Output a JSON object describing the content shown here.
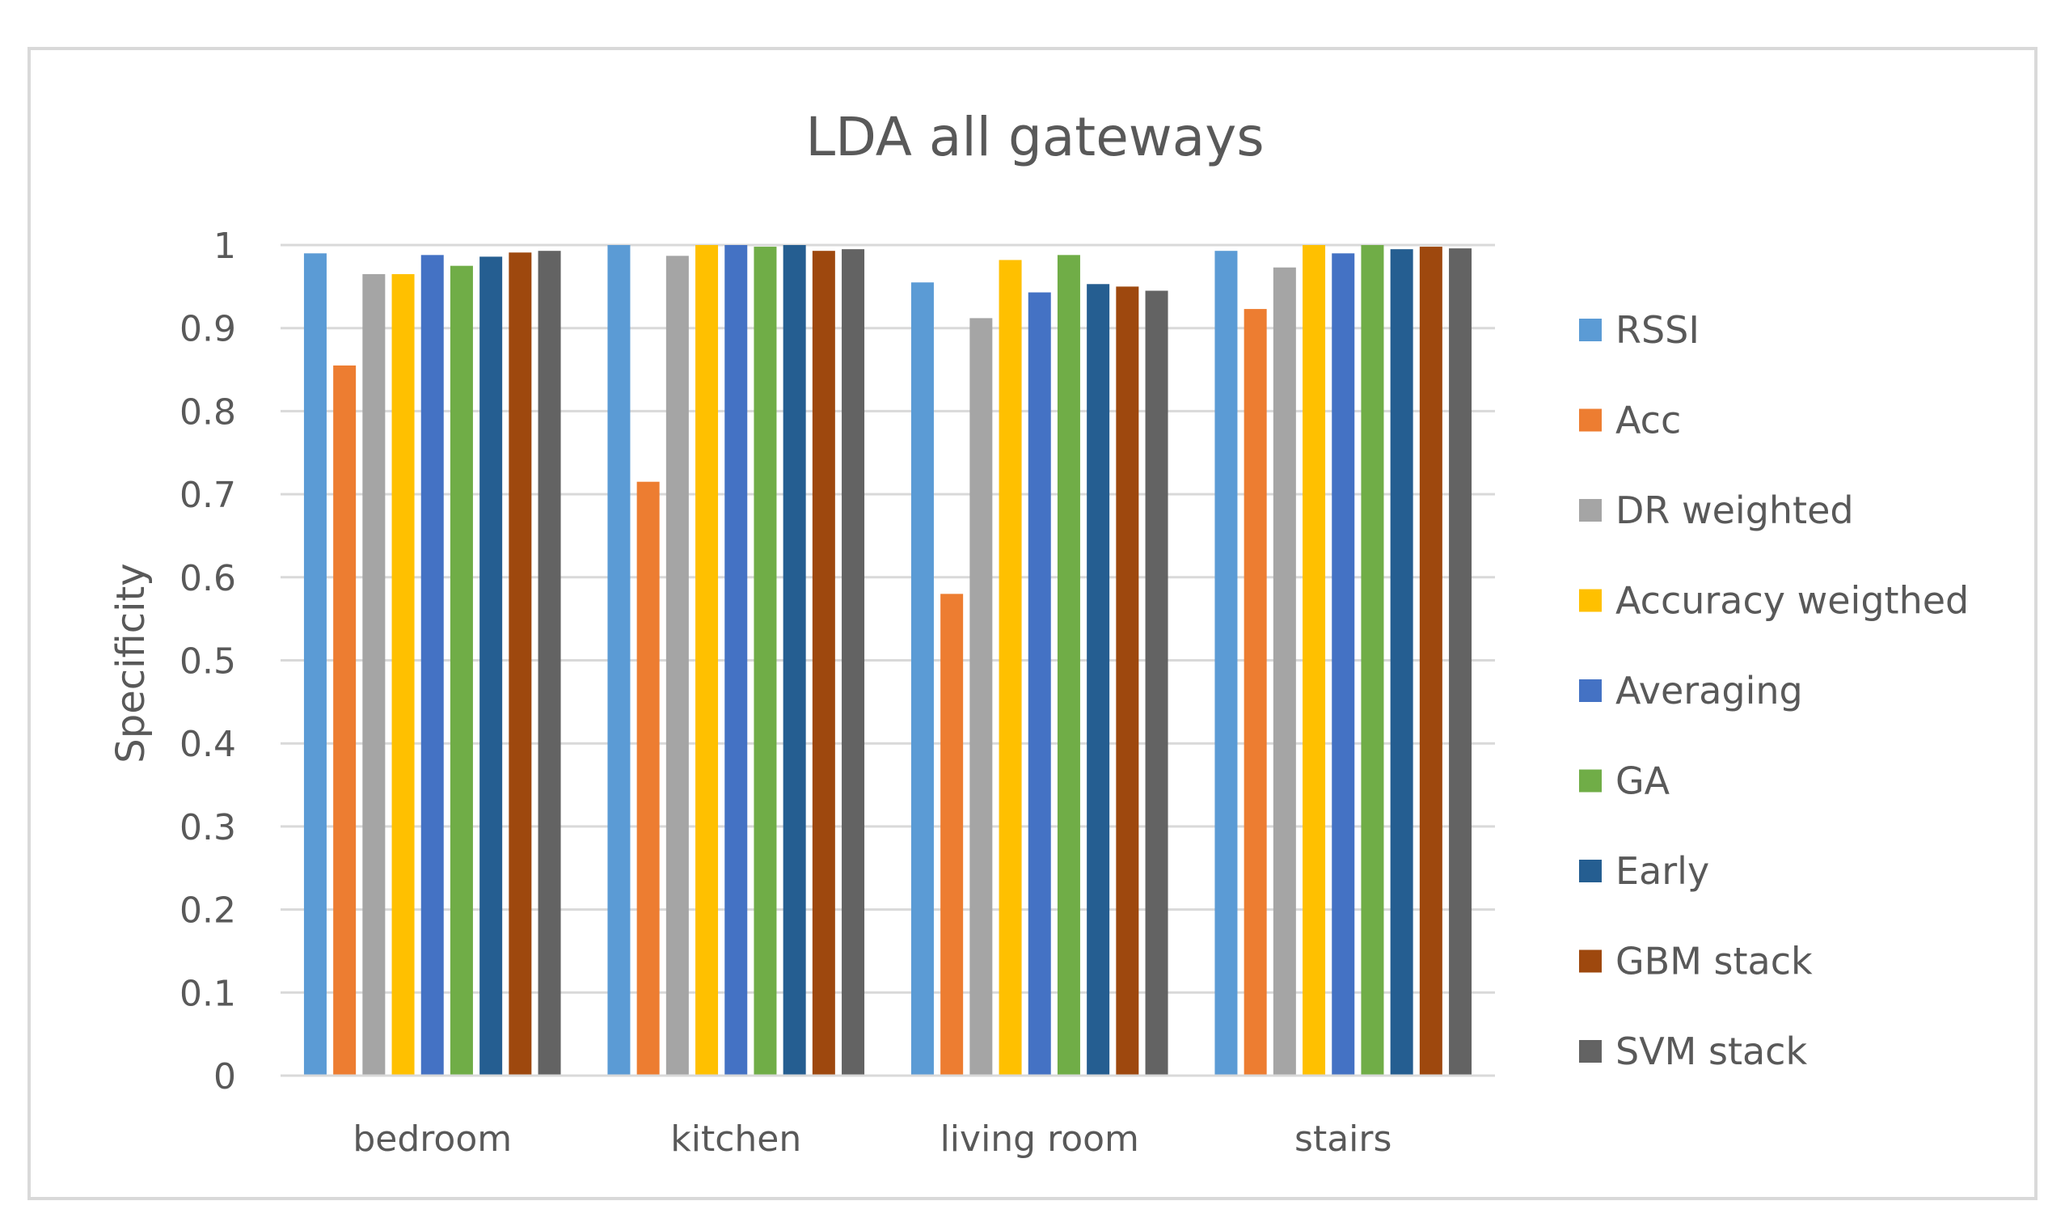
{
  "chart_data": {
    "type": "bar",
    "title": "LDA all gateways",
    "xlabel": "",
    "ylabel": "Specificity",
    "ylim": [
      0,
      1
    ],
    "yticks": [
      0,
      0.1,
      0.2,
      0.3,
      0.4,
      0.5,
      0.6,
      0.7,
      0.8,
      0.9,
      1
    ],
    "ytick_labels": [
      "0",
      "0.1",
      "0.2",
      "0.3",
      "0.4",
      "0.5",
      "0.6",
      "0.7",
      "0.8",
      "0.9",
      "1"
    ],
    "grid": true,
    "legend_position": "right",
    "categories": [
      "bedroom",
      "kitchen",
      "living room",
      "stairs"
    ],
    "series": [
      {
        "name": "RSSI",
        "color": "#5b9bd5",
        "values": [
          0.99,
          1.0,
          0.955,
          0.993
        ]
      },
      {
        "name": "Acc",
        "color": "#ed7d31",
        "values": [
          0.855,
          0.715,
          0.58,
          0.923
        ]
      },
      {
        "name": "DR weighted",
        "color": "#a5a5a5",
        "values": [
          0.965,
          0.987,
          0.912,
          0.973
        ]
      },
      {
        "name": "Accuracy weigthed",
        "color": "#ffc000",
        "values": [
          0.965,
          1.0,
          0.982,
          1.0
        ]
      },
      {
        "name": "Averaging",
        "color": "#4472c4",
        "values": [
          0.988,
          1.0,
          0.943,
          0.99
        ]
      },
      {
        "name": "GA",
        "color": "#70ad47",
        "values": [
          0.975,
          0.998,
          0.988,
          1.0
        ]
      },
      {
        "name": "Early",
        "color": "#255e91",
        "values": [
          0.986,
          1.0,
          0.953,
          0.995
        ]
      },
      {
        "name": "GBM stack",
        "color": "#9e480e",
        "values": [
          0.991,
          0.993,
          0.95,
          0.998
        ]
      },
      {
        "name": "SVM stack",
        "color": "#636363",
        "values": [
          0.993,
          0.995,
          0.945,
          0.996
        ]
      }
    ]
  }
}
